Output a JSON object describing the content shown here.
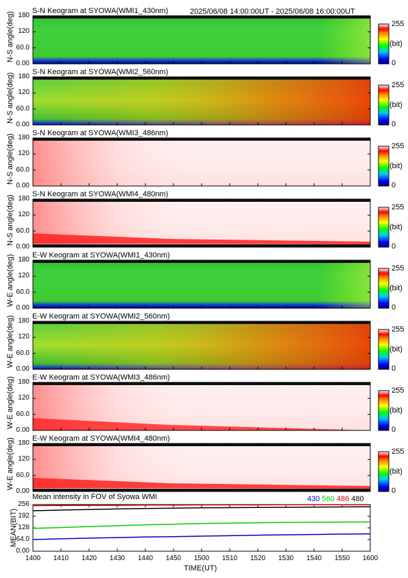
{
  "header": {
    "time_range": "2025/06/08 14:00:00UT - 2025/06/08 16:00:00UT"
  },
  "colorbar": {
    "max_label": "255",
    "unit_label": "(bit)",
    "min_label": "0"
  },
  "keograms": [
    {
      "title": "S-N Keogram at SYOWA(WMI1_430nm)",
      "ylabel": "N-S angle(deg)",
      "yticks": [
        "180",
        "120",
        "60.0",
        "0.00"
      ],
      "band": "430nm",
      "dominant": "green"
    },
    {
      "title": "S-N Keogram at SYOWA(WMI2_560nm)",
      "ylabel": "N-S angle(deg)",
      "yticks": [
        "180",
        "120",
        "60.0",
        "0.00"
      ],
      "band": "560nm",
      "dominant": "green-yellow-red"
    },
    {
      "title": "S-N Keogram at SYOWA(WMI3_486nm)",
      "ylabel": "N-S angle(deg)",
      "yticks": [
        "180",
        "120",
        "60.0",
        "0.00"
      ],
      "band": "486nm",
      "dominant": "white"
    },
    {
      "title": "S-N Keogram at SYOWA(WMI4_480nm)",
      "ylabel": "N-S angle(deg)",
      "yticks": [
        "180",
        "120",
        "60.0",
        "0.00"
      ],
      "band": "480nm",
      "dominant": "white"
    },
    {
      "title": "E-W Keogram at SYOWA(WMI1_430nm)",
      "ylabel": "W-E angle(deg)",
      "yticks": [
        "180",
        "120",
        "60.0",
        "0.00"
      ],
      "band": "430nm",
      "dominant": "green"
    },
    {
      "title": "E-W Keogram at SYOWA(WMI2_560nm)",
      "ylabel": "W-E angle(deg)",
      "yticks": [
        "180",
        "120",
        "60.0",
        "0.00"
      ],
      "band": "560nm",
      "dominant": "green-yellow-red"
    },
    {
      "title": "E-W Keogram at SYOWA(WMI3_486nm)",
      "ylabel": "W-E angle(deg)",
      "yticks": [
        "180",
        "120",
        "60.0",
        "0.00"
      ],
      "band": "486nm",
      "dominant": "white"
    },
    {
      "title": "E-W Keogram at SYOWA(WMI4_480nm)",
      "ylabel": "W-E angle(deg)",
      "yticks": [
        "180",
        "120",
        "60.0",
        "0.00"
      ],
      "band": "480nm",
      "dominant": "white"
    }
  ],
  "mean_panel": {
    "title": "Mean intensity in FOV of Syowa WMI",
    "ylabel": "MEAN(BIT)",
    "yticks": [
      "256",
      "192",
      "128",
      "64.0",
      "0.00"
    ],
    "legend": [
      {
        "label": "430",
        "color": "#0000cc"
      },
      {
        "label": "560",
        "color": "#00cc00"
      },
      {
        "label": "486",
        "color": "#cc0000"
      },
      {
        "label": "480",
        "color": "#000000"
      }
    ]
  },
  "xaxis": {
    "label": "TIME(UT)",
    "ticks": [
      "1400",
      "1410",
      "1420",
      "1430",
      "1440",
      "1450",
      "1500",
      "1510",
      "1520",
      "1530",
      "1540",
      "1550",
      "1600"
    ]
  },
  "chart_data": {
    "type": "line",
    "title": "Mean intensity in FOV of Syowa WMI",
    "xlabel": "TIME(UT)",
    "ylabel": "MEAN(BIT)",
    "x": [
      "1400",
      "1410",
      "1420",
      "1430",
      "1440",
      "1450",
      "1500",
      "1510",
      "1520",
      "1530",
      "1540",
      "1550",
      "1600"
    ],
    "ylim": [
      0,
      256
    ],
    "series": [
      {
        "name": "430",
        "color": "#0000cc",
        "values": [
          64,
          68,
          72,
          75,
          78,
          80,
          83,
          85,
          88,
          90,
          92,
          94,
          95
        ]
      },
      {
        "name": "560",
        "color": "#00cc00",
        "values": [
          125,
          130,
          135,
          140,
          145,
          148,
          152,
          154,
          156,
          158,
          159,
          160,
          160
        ]
      },
      {
        "name": "486",
        "color": "#cc0000",
        "values": [
          250,
          251,
          252,
          252,
          253,
          253,
          254,
          254,
          254,
          255,
          255,
          255,
          255
        ]
      },
      {
        "name": "480",
        "color": "#000000",
        "values": [
          222,
          226,
          229,
          232,
          234,
          236,
          238,
          239,
          240,
          241,
          242,
          243,
          244
        ]
      }
    ]
  }
}
